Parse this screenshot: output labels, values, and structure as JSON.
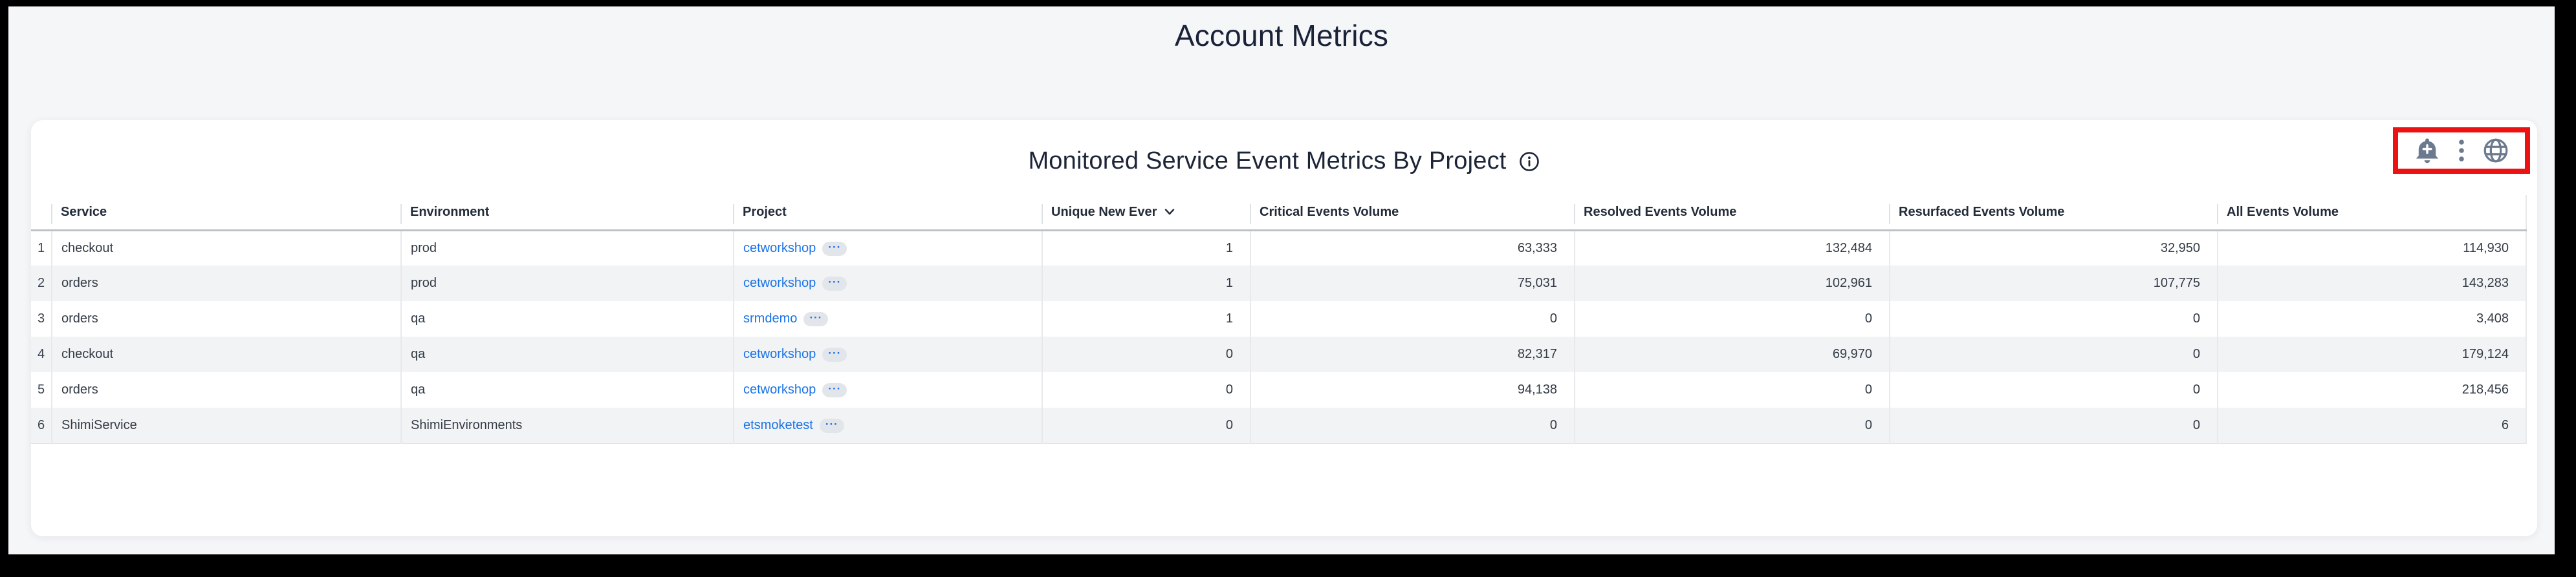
{
  "page": {
    "title": "Account Metrics"
  },
  "panel": {
    "title": "Monitored Service Event Metrics By Project",
    "toolbar": {
      "icons": [
        "add-alert-bell-plus",
        "kebab-vertical-menu",
        "globe"
      ],
      "annotation_highlight_color": "#ee1111"
    }
  },
  "table": {
    "columns": [
      {
        "label": "Service",
        "align": "left"
      },
      {
        "label": "Environment",
        "align": "left"
      },
      {
        "label": "Project",
        "align": "left"
      },
      {
        "label": "Unique New Ever",
        "align": "left",
        "sorted": "desc"
      },
      {
        "label": "Critical Events Volume",
        "align": "left"
      },
      {
        "label": "Resolved Events Volume",
        "align": "left"
      },
      {
        "label": "Resurfaced Events Volume",
        "align": "left"
      },
      {
        "label": "All Events Volume",
        "align": "left"
      }
    ],
    "project_badge": "···",
    "rows": [
      {
        "num": "1",
        "service": "checkout",
        "environment": "prod",
        "project": "cetworkshop",
        "unique_new_ever": "1",
        "critical_events_volume": "63,333",
        "resolved_events_volume": "132,484",
        "resurfaced_events_volume": "32,950",
        "all_events_volume": "114,930"
      },
      {
        "num": "2",
        "service": "orders",
        "environment": "prod",
        "project": "cetworkshop",
        "unique_new_ever": "1",
        "critical_events_volume": "75,031",
        "resolved_events_volume": "102,961",
        "resurfaced_events_volume": "107,775",
        "all_events_volume": "143,283"
      },
      {
        "num": "3",
        "service": "orders",
        "environment": "qa",
        "project": "srmdemo",
        "unique_new_ever": "1",
        "critical_events_volume": "0",
        "resolved_events_volume": "0",
        "resurfaced_events_volume": "0",
        "all_events_volume": "3,408"
      },
      {
        "num": "4",
        "service": "checkout",
        "environment": "qa",
        "project": "cetworkshop",
        "unique_new_ever": "0",
        "critical_events_volume": "82,317",
        "resolved_events_volume": "69,970",
        "resurfaced_events_volume": "0",
        "all_events_volume": "179,124"
      },
      {
        "num": "5",
        "service": "orders",
        "environment": "qa",
        "project": "cetworkshop",
        "unique_new_ever": "0",
        "critical_events_volume": "94,138",
        "resolved_events_volume": "0",
        "resurfaced_events_volume": "0",
        "all_events_volume": "218,456"
      },
      {
        "num": "6",
        "service": "ShimiService",
        "environment": "ShimiEnvironments",
        "project": "etsmoketest",
        "unique_new_ever": "0",
        "critical_events_volume": "0",
        "resolved_events_volume": "0",
        "resurfaced_events_volume": "0",
        "all_events_volume": "6"
      }
    ]
  },
  "colors": {
    "page_background": "#f5f6f8",
    "panel_background": "#ffffff",
    "title_text": "#1a2238",
    "link_blue": "#1a73e8",
    "icon_gray": "#6b7a8e",
    "annotation_red": "#ee1111",
    "alt_row_gray": "#f2f3f4"
  }
}
